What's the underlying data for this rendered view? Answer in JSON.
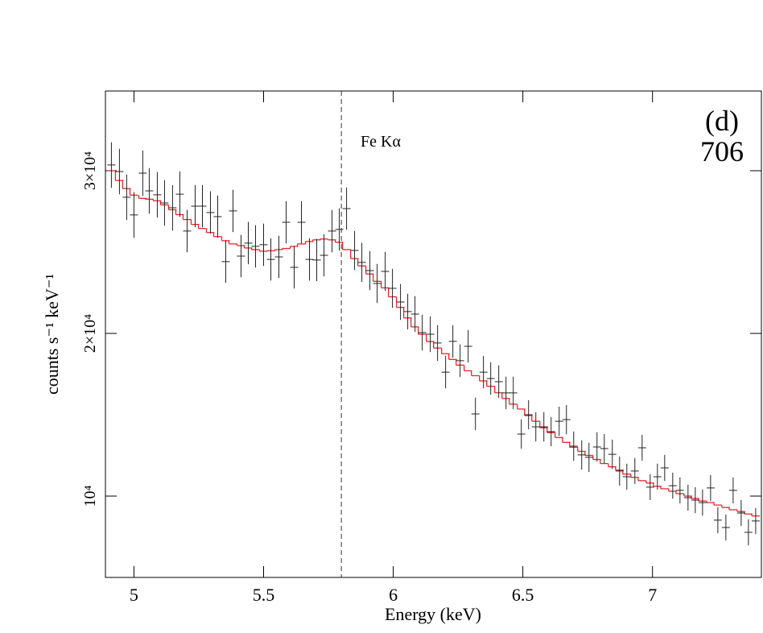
{
  "chart_data": {
    "type": "spectrum",
    "xlabel": "Energy (keV)",
    "ylabel": "counts s⁻¹ keV⁻¹",
    "annotation": "Fe Kα",
    "line_energy": 5.8,
    "panel_label": "(d)",
    "panel_id": "706",
    "xlim": [
      4.89,
      7.42
    ],
    "ylim": [
      5000,
      34900
    ],
    "xticks": [
      5,
      5.5,
      6,
      6.5,
      7
    ],
    "yticks": [
      {
        "value": 10000,
        "label": "10⁴"
      },
      {
        "value": 20000,
        "label": "2×10⁴"
      },
      {
        "value": 30000,
        "label": "3×10⁴"
      }
    ],
    "color": "#222222",
    "model_color": "#e8262b",
    "xerr": 0.0155,
    "x": [
      4.913,
      4.944,
      4.972,
      5.0,
      5.034,
      5.059,
      5.09,
      5.118,
      5.149,
      5.177,
      5.205,
      5.236,
      5.264,
      5.295,
      5.323,
      5.354,
      5.382,
      5.413,
      5.441,
      5.469,
      5.5,
      5.528,
      5.559,
      5.587,
      5.618,
      5.646,
      5.677,
      5.705,
      5.733,
      5.764,
      5.792,
      5.82,
      5.851,
      5.879,
      5.91,
      5.938,
      5.969,
      5.997,
      6.028,
      6.056,
      6.084,
      6.112,
      6.143,
      6.171,
      6.202,
      6.23,
      6.258,
      6.289,
      6.317,
      6.348,
      6.376,
      6.407,
      6.435,
      6.463,
      6.494,
      6.522,
      6.55,
      6.581,
      6.609,
      6.64,
      6.668,
      6.696,
      6.727,
      6.755,
      6.786,
      6.814,
      6.845,
      6.873,
      6.901,
      6.932,
      6.96,
      6.991,
      7.019,
      7.047,
      7.078,
      7.106,
      7.137,
      7.165,
      7.193,
      7.224,
      7.252,
      7.283,
      7.311,
      7.342,
      7.37,
      7.398
    ],
    "values": [
      30350,
      29950,
      28370,
      27280,
      29850,
      28760,
      28520,
      28020,
      27720,
      28560,
      26290,
      27820,
      27820,
      27430,
      27180,
      24410,
      27530,
      24750,
      25550,
      25350,
      25450,
      24550,
      24700,
      26830,
      24060,
      26830,
      24550,
      24510,
      24800,
      26290,
      26390,
      27670,
      25100,
      24360,
      23860,
      23070,
      23810,
      22770,
      21930,
      21340,
      21190,
      20050,
      19950,
      19410,
      17620,
      19510,
      18320,
      19210,
      15050,
      17620,
      17230,
      17030,
      16340,
      16340,
      13810,
      15000,
      14260,
      14260,
      13960,
      14600,
      14700,
      13070,
      12530,
      12380,
      13020,
      12920,
      12570,
      11540,
      11190,
      11540,
      12970,
      10550,
      11190,
      11730,
      10640,
      10350,
      9900,
      9750,
      9600,
      10500,
      8520,
      8070,
      10350,
      8960,
      7770,
      8470
    ],
    "yerr": [
      1400,
      1400,
      1400,
      1400,
      1400,
      1400,
      1400,
      1400,
      1400,
      1400,
      1300,
      1300,
      1300,
      1300,
      1300,
      1300,
      1300,
      1300,
      1300,
      1300,
      1300,
      1300,
      1300,
      1300,
      1300,
      1300,
      1300,
      1300,
      1300,
      1300,
      1300,
      1300,
      1200,
      1200,
      1200,
      1200,
      1200,
      1200,
      1100,
      1100,
      1100,
      1100,
      1100,
      1100,
      1000,
      1000,
      1000,
      1000,
      1000,
      1000,
      1000,
      1000,
      1000,
      1000,
      900,
      900,
      900,
      900,
      900,
      900,
      900,
      900,
      900,
      900,
      900,
      900,
      900,
      900,
      800,
      800,
      800,
      800,
      800,
      800,
      800,
      800,
      800,
      800,
      800,
      800,
      800,
      800,
      800,
      800,
      800,
      800
    ],
    "model": [
      30000,
      29400,
      28900,
      28500,
      28300,
      28250,
      28150,
      27900,
      27600,
      27300,
      27000,
      26700,
      26450,
      26200,
      25950,
      25700,
      25500,
      25400,
      25250,
      25150,
      25050,
      25080,
      25150,
      25220,
      25350,
      25500,
      25650,
      25750,
      25800,
      25750,
      25600,
      25150,
      24600,
      24150,
      23650,
      23200,
      22800,
      22250,
      21600,
      20950,
      20400,
      19950,
      19500,
      19100,
      18750,
      18400,
      18050,
      17700,
      17400,
      17080,
      16750,
      16350,
      16000,
      15650,
      15350,
      14950,
      14600,
      14200,
      13900,
      13600,
      13300,
      13000,
      12750,
      12500,
      12250,
      12000,
      11800,
      11600,
      11350,
      11150,
      10950,
      10800,
      10600,
      10450,
      10300,
      10150,
      10000,
      9850,
      9700,
      9600,
      9450,
      9300,
      9160,
      9050,
      8900,
      8780
    ]
  }
}
